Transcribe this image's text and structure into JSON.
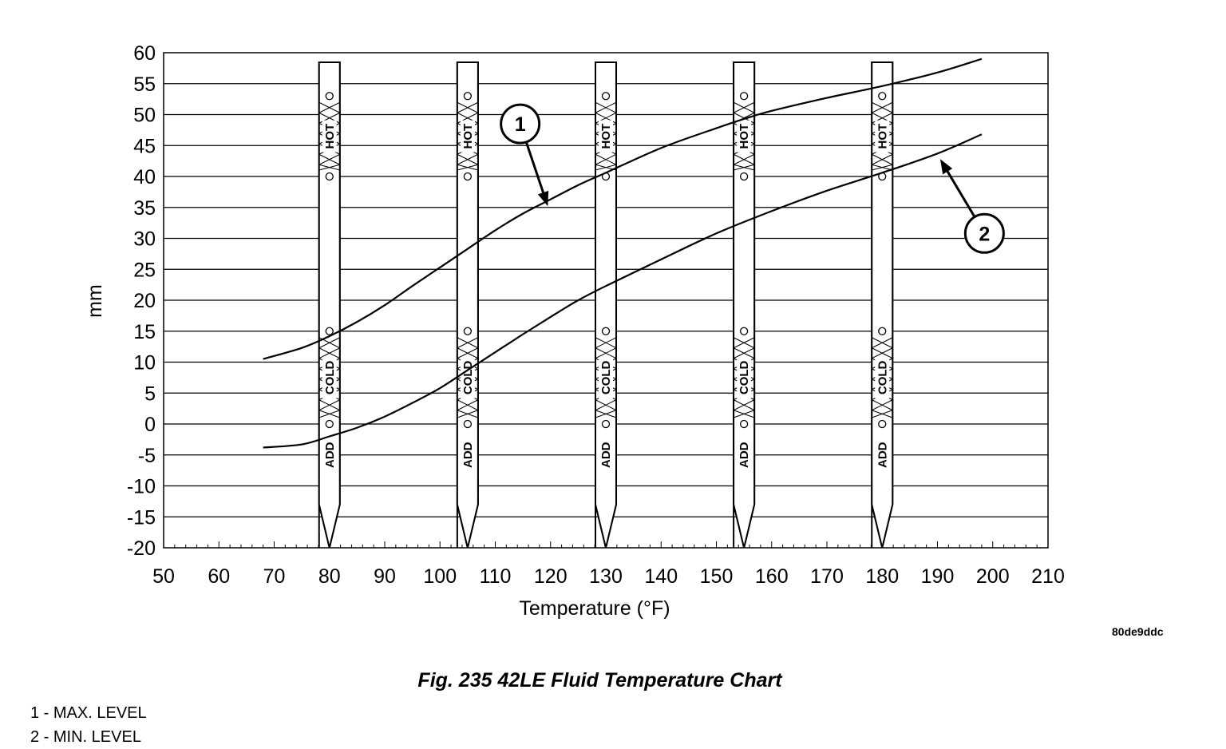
{
  "chart_data": {
    "type": "line",
    "xlabel": "Temperature (°F)",
    "ylabel": "mm",
    "xlim": [
      50,
      210
    ],
    "ylim": [
      -20,
      60
    ],
    "x_ticks": [
      50,
      60,
      70,
      80,
      90,
      100,
      110,
      120,
      130,
      140,
      150,
      160,
      170,
      180,
      190,
      200,
      210
    ],
    "y_ticks": [
      60,
      55,
      50,
      45,
      40,
      35,
      30,
      25,
      20,
      15,
      10,
      5,
      0,
      -5,
      -10,
      -15,
      -20
    ],
    "grid": "horizontal",
    "series": [
      {
        "name": "1",
        "x": [
          68,
          75,
          80,
          85,
          90,
          95,
          100,
          105,
          110,
          115,
          120,
          125,
          130,
          140,
          150,
          155,
          160,
          170,
          180,
          190,
          198
        ],
        "y": [
          10.5,
          12.3,
          14.2,
          16.5,
          19.2,
          22.3,
          25.3,
          28.3,
          31.3,
          34,
          36.3,
          38.6,
          40.6,
          44.6,
          47.8,
          49.3,
          50.6,
          52.7,
          54.6,
          56.8,
          59
        ]
      },
      {
        "name": "2",
        "x": [
          68,
          75,
          80,
          85,
          90,
          95,
          100,
          105,
          110,
          115,
          120,
          125,
          130,
          140,
          150,
          160,
          170,
          180,
          190,
          198
        ],
        "y": [
          -3.8,
          -3.3,
          -2.0,
          -0.6,
          1.2,
          3.4,
          5.8,
          8.7,
          11.6,
          14.5,
          17.3,
          20,
          22.3,
          26.6,
          30.8,
          34.4,
          37.7,
          40.6,
          43.7,
          46.8
        ]
      }
    ],
    "dipsticks": {
      "x": [
        80,
        105,
        130,
        155,
        180
      ],
      "labels": {
        "hot": "HOT",
        "cold": "COLD",
        "add": "ADD"
      },
      "hot_range": [
        40,
        53
      ],
      "cold_range": [
        0,
        15
      ],
      "add_level": -5
    },
    "callouts": [
      "1",
      "2"
    ]
  },
  "figure_id": "80de9ddc",
  "caption": "Fig. 235 42LE Fluid Temperature Chart",
  "legend": [
    "1 - MAX. LEVEL",
    "2 - MIN. LEVEL"
  ]
}
